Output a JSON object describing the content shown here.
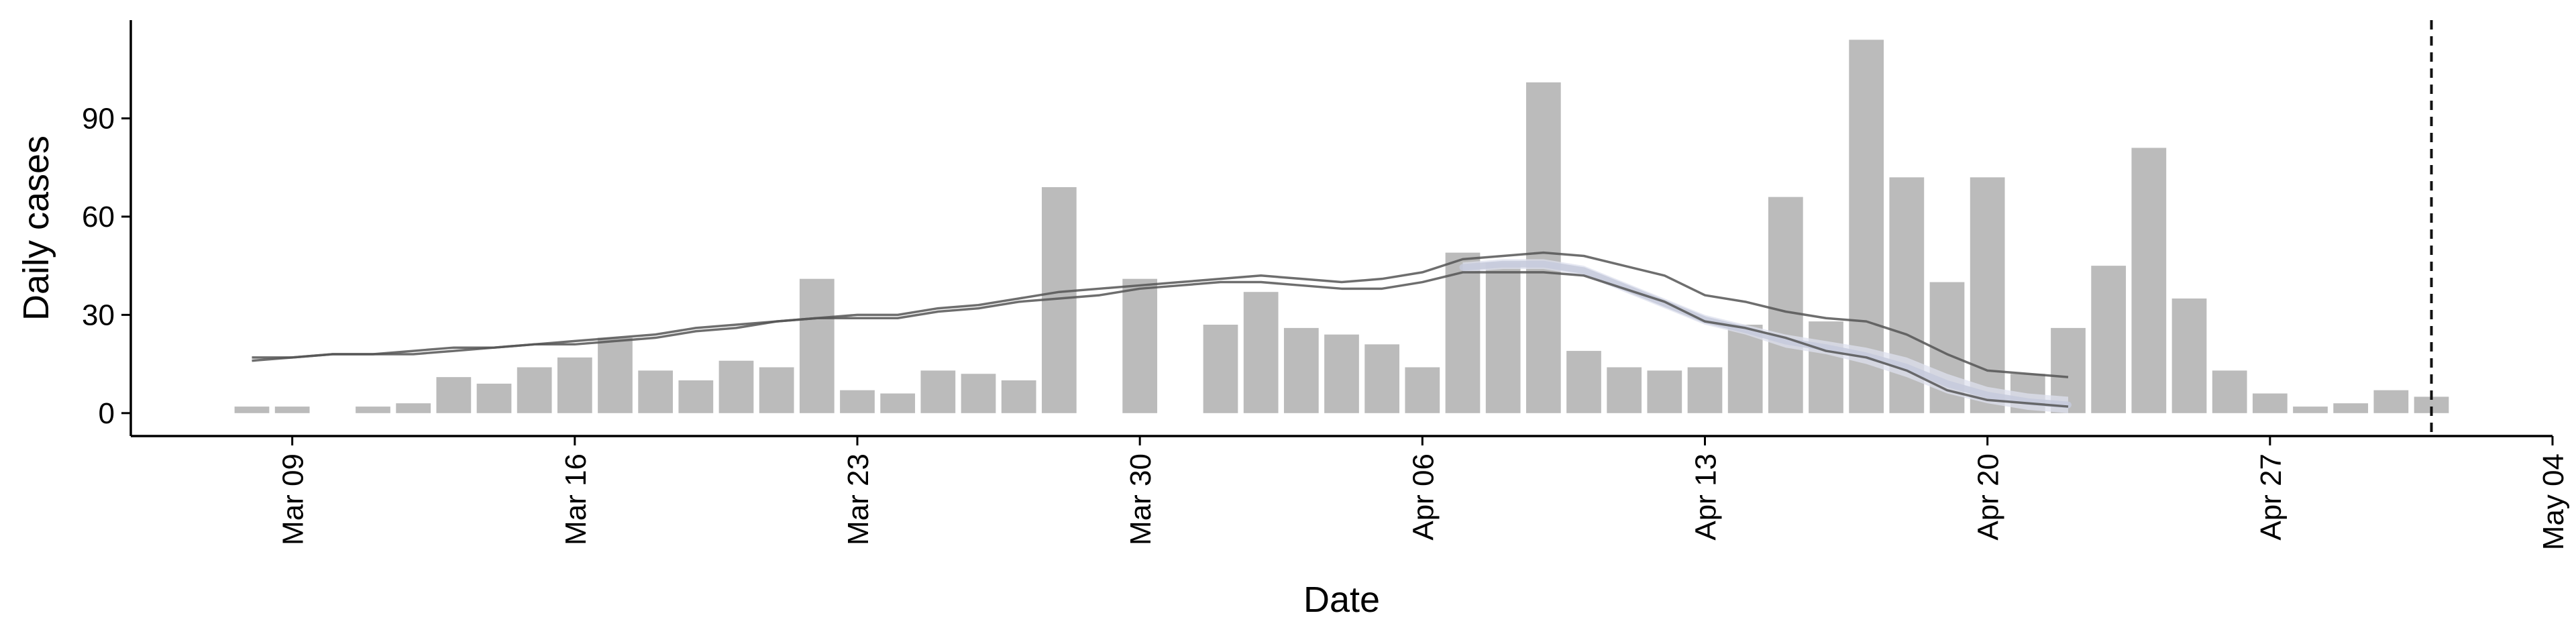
{
  "chart_data": {
    "type": "bar",
    "title": "",
    "xlabel": "Date",
    "ylabel": "Daily cases",
    "ylim": [
      -7,
      120
    ],
    "xlim": [
      "2020-03-05",
      "2020-05-04"
    ],
    "y_ticks": [
      "0",
      "30",
      "60",
      "90"
    ],
    "x_ticks": [
      {
        "date": "2020-03-09",
        "label": "Mar 09"
      },
      {
        "date": "2020-03-16",
        "label": "Mar 16"
      },
      {
        "date": "2020-03-23",
        "label": "Mar 23"
      },
      {
        "date": "2020-03-30",
        "label": "Mar 30"
      },
      {
        "date": "2020-04-06",
        "label": "Apr 06"
      },
      {
        "date": "2020-04-13",
        "label": "Apr 13"
      },
      {
        "date": "2020-04-20",
        "label": "Apr 20"
      },
      {
        "date": "2020-04-27",
        "label": "Apr 27"
      },
      {
        "date": "2020-05-04",
        "label": "May 04"
      }
    ],
    "grid": false,
    "bar_color": "#bbbbbb",
    "band_color": "#dde0ee",
    "line_color": "#555555",
    "bars": {
      "dates": [
        "2020-03-08",
        "2020-03-09",
        "2020-03-10",
        "2020-03-11",
        "2020-03-12",
        "2020-03-13",
        "2020-03-14",
        "2020-03-15",
        "2020-03-16",
        "2020-03-17",
        "2020-03-18",
        "2020-03-19",
        "2020-03-20",
        "2020-03-21",
        "2020-03-22",
        "2020-03-23",
        "2020-03-24",
        "2020-03-25",
        "2020-03-26",
        "2020-03-27",
        "2020-03-28",
        "2020-03-29",
        "2020-03-30",
        "2020-03-31",
        "2020-04-01",
        "2020-04-02",
        "2020-04-03",
        "2020-04-04",
        "2020-04-05",
        "2020-04-06",
        "2020-04-07",
        "2020-04-08",
        "2020-04-09",
        "2020-04-10",
        "2020-04-11",
        "2020-04-12",
        "2020-04-13",
        "2020-04-14",
        "2020-04-15",
        "2020-04-16",
        "2020-04-17",
        "2020-04-18",
        "2020-04-19",
        "2020-04-20",
        "2020-04-21",
        "2020-04-22",
        "2020-04-23",
        "2020-04-24",
        "2020-04-25",
        "2020-04-26",
        "2020-04-27",
        "2020-04-28",
        "2020-04-29",
        "2020-04-30",
        "2020-05-01"
      ],
      "values": [
        2,
        2,
        0,
        2,
        3,
        11,
        9,
        14,
        17,
        23,
        13,
        10,
        16,
        14,
        41,
        7,
        6,
        13,
        12,
        10,
        69,
        0,
        41,
        0,
        27,
        37,
        26,
        24,
        21,
        14,
        49,
        46,
        101,
        19,
        14,
        13,
        14,
        27,
        66,
        28,
        114,
        72,
        40,
        72,
        12,
        26,
        45,
        81,
        35,
        13,
        6,
        2,
        3,
        7,
        5
      ]
    },
    "band": {
      "dates": [
        "2020-04-07",
        "2020-04-08",
        "2020-04-09",
        "2020-04-10",
        "2020-04-11",
        "2020-04-12",
        "2020-04-13",
        "2020-04-14",
        "2020-04-15",
        "2020-04-16",
        "2020-04-17",
        "2020-04-18",
        "2020-04-19",
        "2020-04-20",
        "2020-04-21",
        "2020-04-22"
      ],
      "upper": [
        46,
        47,
        47,
        45,
        40,
        35,
        30,
        27,
        24,
        22,
        20,
        17,
        12,
        8,
        6,
        5
      ],
      "lower": [
        43,
        44,
        44,
        42,
        37,
        32,
        27,
        24,
        20,
        18,
        15,
        11,
        6,
        3,
        1,
        0
      ]
    },
    "upper_line": {
      "dates": [
        "2020-03-08",
        "2020-03-09",
        "2020-03-10",
        "2020-03-11",
        "2020-03-12",
        "2020-03-13",
        "2020-03-14",
        "2020-03-15",
        "2020-03-16",
        "2020-03-17",
        "2020-03-18",
        "2020-03-19",
        "2020-03-20",
        "2020-03-21",
        "2020-03-22",
        "2020-03-23",
        "2020-03-24",
        "2020-03-25",
        "2020-03-26",
        "2020-03-27",
        "2020-03-28",
        "2020-03-29",
        "2020-03-30",
        "2020-03-31",
        "2020-04-01",
        "2020-04-02",
        "2020-04-03",
        "2020-04-04",
        "2020-04-05",
        "2020-04-06",
        "2020-04-07",
        "2020-04-08",
        "2020-04-09",
        "2020-04-10",
        "2020-04-11",
        "2020-04-12",
        "2020-04-13",
        "2020-04-14",
        "2020-04-15",
        "2020-04-16",
        "2020-04-17",
        "2020-04-18",
        "2020-04-19",
        "2020-04-20",
        "2020-04-21",
        "2020-04-22"
      ],
      "values": [
        17,
        17,
        18,
        18,
        19,
        20,
        20,
        21,
        22,
        23,
        24,
        26,
        27,
        28,
        29,
        30,
        30,
        32,
        33,
        35,
        37,
        38,
        39,
        40,
        41,
        42,
        41,
        40,
        41,
        43,
        47,
        48,
        49,
        48,
        45,
        42,
        36,
        34,
        31,
        29,
        28,
        24,
        18,
        13,
        12,
        11
      ]
    },
    "lower_line": {
      "dates": [
        "2020-03-08",
        "2020-03-09",
        "2020-03-10",
        "2020-03-11",
        "2020-03-12",
        "2020-03-13",
        "2020-03-14",
        "2020-03-15",
        "2020-03-16",
        "2020-03-17",
        "2020-03-18",
        "2020-03-19",
        "2020-03-20",
        "2020-03-21",
        "2020-03-22",
        "2020-03-23",
        "2020-03-24",
        "2020-03-25",
        "2020-03-26",
        "2020-03-27",
        "2020-03-28",
        "2020-03-29",
        "2020-03-30",
        "2020-03-31",
        "2020-04-01",
        "2020-04-02",
        "2020-04-03",
        "2020-04-04",
        "2020-04-05",
        "2020-04-06",
        "2020-04-07",
        "2020-04-08",
        "2020-04-09",
        "2020-04-10",
        "2020-04-11",
        "2020-04-12",
        "2020-04-13",
        "2020-04-14",
        "2020-04-15",
        "2020-04-16",
        "2020-04-17",
        "2020-04-18",
        "2020-04-19",
        "2020-04-20",
        "2020-04-21",
        "2020-04-22"
      ],
      "values": [
        16,
        17,
        18,
        18,
        18,
        19,
        20,
        21,
        21,
        22,
        23,
        25,
        26,
        28,
        29,
        29,
        29,
        31,
        32,
        34,
        35,
        36,
        38,
        39,
        40,
        40,
        39,
        38,
        38,
        40,
        43,
        43,
        43,
        42,
        38,
        34,
        28,
        26,
        23,
        19,
        17,
        13,
        7,
        4,
        3,
        2
      ]
    },
    "vertical_line": {
      "date": "2020-05-01",
      "style": "dashed"
    }
  }
}
